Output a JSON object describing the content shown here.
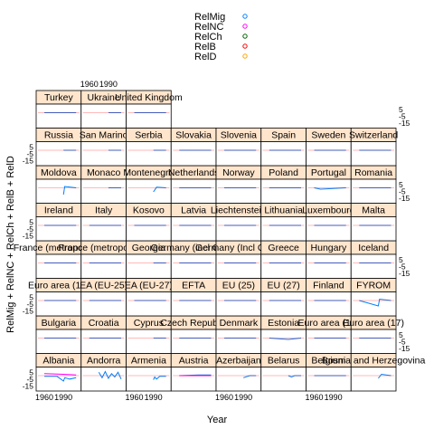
{
  "chart_data": {
    "type": "line",
    "title": "",
    "xlabel": "Year",
    "ylabel": "RelMig + RelNC + RelCh + RelB + RelD",
    "legend": {
      "placement": "top-center",
      "entries": [
        {
          "name": "RelMig",
          "color": "#0080ff"
        },
        {
          "name": "RelNC",
          "color": "#ff00ff"
        },
        {
          "name": "RelCh",
          "color": "#006400"
        },
        {
          "name": "RelB",
          "color": "#ff0000"
        },
        {
          "name": "RelD",
          "color": "#ffa500"
        }
      ]
    },
    "x_ticks": [
      "1960",
      "1990"
    ],
    "y_ticks": [
      "5",
      "-5",
      "-15"
    ],
    "xlim": [
      1950,
      2015
    ],
    "ylim": [
      -20,
      10
    ],
    "layout_grid": {
      "columns": 8,
      "rows": 8
    },
    "panels": [
      {
        "row": 0,
        "col": 0,
        "label": "Albania",
        "series": {
          "RelMig": [
            [
              1960,
              -1
            ],
            [
              1970,
              -1
            ],
            [
              1980,
              -1
            ],
            [
              1990,
              -8
            ],
            [
              1992,
              -3
            ],
            [
              2000,
              -5
            ],
            [
              2010,
              -3
            ]
          ],
          "RelNC": [
            [
              1960,
              3
            ],
            [
              1990,
              2
            ],
            [
              2010,
              1
            ]
          ]
        }
      },
      {
        "row": 0,
        "col": 1,
        "label": "Andorra",
        "series": {
          "RelMig": [
            [
              1975,
              5
            ],
            [
              1980,
              -3
            ],
            [
              1985,
              6
            ],
            [
              1990,
              -4
            ],
            [
              1995,
              3
            ],
            [
              2000,
              -2
            ],
            [
              2005,
              5
            ],
            [
              2010,
              -5
            ]
          ]
        }
      },
      {
        "row": 0,
        "col": 2,
        "label": "Armenia",
        "series": {
          "RelMig": [
            [
              1990,
              -6
            ],
            [
              1992,
              -2
            ],
            [
              1995,
              -5
            ],
            [
              2000,
              -1
            ],
            [
              2010,
              -1
            ]
          ]
        }
      },
      {
        "row": 0,
        "col": 3,
        "label": "Austria",
        "series": {
          "RelMig": [
            [
              1960,
              0
            ],
            [
              1990,
              1
            ],
            [
              2010,
              1
            ]
          ],
          "RelNC": [
            [
              1960,
              0
            ],
            [
              2010,
              0
            ]
          ]
        }
      },
      {
        "row": 0,
        "col": 4,
        "label": "Azerbaijan",
        "series": {
          "RelMig": [
            [
              1990,
              -3
            ],
            [
              2000,
              0
            ],
            [
              2010,
              0
            ]
          ]
        }
      },
      {
        "row": 0,
        "col": 5,
        "label": "Belarus",
        "series": {
          "RelMig": [
            [
              1990,
              0
            ],
            [
              1995,
              -2
            ],
            [
              2000,
              0
            ],
            [
              2010,
              0
            ]
          ]
        }
      },
      {
        "row": 0,
        "col": 6,
        "label": "Belgium",
        "series": {
          "RelMig": [
            [
              1960,
              0
            ],
            [
              2010,
              0
            ]
          ]
        }
      },
      {
        "row": 0,
        "col": 7,
        "label": "Bosnia and Herzegovina",
        "series": {
          "RelMig": [
            [
              1990,
              -4
            ],
            [
              1995,
              2
            ],
            [
              2010,
              0
            ]
          ]
        }
      },
      {
        "row": 1,
        "col": 0,
        "label": "Bulgaria",
        "series": {
          "RelMig": [
            [
              1960,
              0
            ],
            [
              2010,
              0
            ]
          ]
        }
      },
      {
        "row": 1,
        "col": 1,
        "label": "Croatia",
        "series": {
          "RelMig": [
            [
              1960,
              0
            ],
            [
              2010,
              0
            ]
          ]
        }
      },
      {
        "row": 1,
        "col": 2,
        "label": "Cyprus",
        "series": {
          "RelMig": [
            [
              1990,
              0
            ],
            [
              2010,
              0
            ]
          ]
        }
      },
      {
        "row": 1,
        "col": 3,
        "label": "Czech Republic",
        "series": {
          "RelMig": [
            [
              1960,
              0
            ],
            [
              2010,
              0
            ]
          ]
        }
      },
      {
        "row": 1,
        "col": 4,
        "label": "Denmark",
        "series": {
          "RelMig": [
            [
              1960,
              0
            ],
            [
              2010,
              0
            ]
          ]
        }
      },
      {
        "row": 1,
        "col": 5,
        "label": "Estonia",
        "series": {
          "RelMig": [
            [
              1960,
              0
            ],
            [
              1990,
              -2
            ],
            [
              2010,
              0
            ]
          ]
        }
      },
      {
        "row": 1,
        "col": 6,
        "label": "Euro area (16)",
        "series": {
          "RelMig": [
            [
              1960,
              0
            ],
            [
              2010,
              0
            ]
          ]
        }
      },
      {
        "row": 1,
        "col": 7,
        "label": "Euro area (17)",
        "series": {
          "RelMig": [
            [
              1960,
              0
            ],
            [
              2010,
              0
            ]
          ]
        }
      },
      {
        "row": 2,
        "col": 0,
        "label": "Euro area (15)",
        "series": {
          "RelMig": [
            [
              1960,
              0
            ],
            [
              2010,
              0
            ]
          ]
        }
      },
      {
        "row": 2,
        "col": 1,
        "label": "EA (EU-25)",
        "series": {
          "RelMig": [
            [
              1960,
              0
            ],
            [
              2010,
              0
            ]
          ]
        }
      },
      {
        "row": 2,
        "col": 2,
        "label": "EA (EU-27)",
        "series": {
          "RelMig": [
            [
              1960,
              0
            ],
            [
              2010,
              0
            ]
          ]
        }
      },
      {
        "row": 2,
        "col": 3,
        "label": "EFTA",
        "series": {
          "RelMig": [
            [
              1960,
              0
            ],
            [
              2010,
              0
            ]
          ]
        }
      },
      {
        "row": 2,
        "col": 4,
        "label": "EU (25)",
        "series": {
          "RelMig": [
            [
              1960,
              0
            ],
            [
              2010,
              0
            ]
          ]
        }
      },
      {
        "row": 2,
        "col": 5,
        "label": "EU (27)",
        "series": {
          "RelMig": [
            [
              1960,
              0
            ],
            [
              2010,
              0
            ]
          ]
        }
      },
      {
        "row": 2,
        "col": 6,
        "label": "Finland",
        "series": {
          "RelMig": [
            [
              1960,
              0
            ],
            [
              2010,
              0
            ]
          ]
        }
      },
      {
        "row": 2,
        "col": 7,
        "label": "FYROM",
        "series": {
          "RelMig": [
            [
              1960,
              0
            ],
            [
              1990,
              -8
            ],
            [
              1992,
              2
            ],
            [
              2010,
              0
            ]
          ]
        }
      },
      {
        "row": 3,
        "col": 0,
        "label": "France (metropolitan)",
        "series": {
          "RelMig": [
            [
              1960,
              0
            ],
            [
              2010,
              0
            ]
          ]
        }
      },
      {
        "row": 3,
        "col": 1,
        "label": "France (metropolitan)",
        "series": {
          "RelMig": [
            [
              1960,
              0
            ],
            [
              2010,
              0
            ]
          ]
        }
      },
      {
        "row": 3,
        "col": 2,
        "label": "Georgia",
        "series": {
          "RelMig": [
            [
              1990,
              0
            ],
            [
              2010,
              0
            ]
          ]
        }
      },
      {
        "row": 3,
        "col": 3,
        "label": "Germany (incl GDR)",
        "series": {
          "RelMig": [
            [
              1960,
              0
            ],
            [
              2010,
              0
            ]
          ]
        }
      },
      {
        "row": 3,
        "col": 4,
        "label": "Germany (Incl GDR)",
        "series": {
          "RelMig": [
            [
              1960,
              0
            ],
            [
              2010,
              0
            ]
          ]
        }
      },
      {
        "row": 3,
        "col": 5,
        "label": "Greece",
        "series": {
          "RelMig": [
            [
              1960,
              0
            ],
            [
              2010,
              0
            ]
          ]
        }
      },
      {
        "row": 3,
        "col": 6,
        "label": "Hungary",
        "series": {
          "RelMig": [
            [
              1960,
              0
            ],
            [
              2010,
              0
            ]
          ]
        }
      },
      {
        "row": 3,
        "col": 7,
        "label": "Iceland",
        "series": {
          "RelMig": [
            [
              1960,
              0
            ],
            [
              2010,
              0
            ]
          ]
        }
      },
      {
        "row": 4,
        "col": 0,
        "label": "Ireland",
        "series": {
          "RelMig": [
            [
              1960,
              0
            ],
            [
              2010,
              0
            ]
          ]
        }
      },
      {
        "row": 4,
        "col": 1,
        "label": "Italy",
        "series": {
          "RelMig": [
            [
              1960,
              0
            ],
            [
              2010,
              0
            ]
          ]
        }
      },
      {
        "row": 4,
        "col": 2,
        "label": "Kosovo",
        "series": {
          "RelMig": [
            [
              1960,
              0
            ],
            [
              2010,
              0
            ]
          ]
        }
      },
      {
        "row": 4,
        "col": 3,
        "label": "Latvia",
        "series": {
          "RelMig": [
            [
              1960,
              0
            ],
            [
              2010,
              0
            ]
          ]
        }
      },
      {
        "row": 4,
        "col": 4,
        "label": "Liechtenstein",
        "series": {
          "RelMig": [
            [
              1960,
              0
            ],
            [
              2010,
              0
            ]
          ]
        }
      },
      {
        "row": 4,
        "col": 5,
        "label": "Lithuania",
        "series": {
          "RelMig": [
            [
              1960,
              0
            ],
            [
              2010,
              0
            ]
          ]
        }
      },
      {
        "row": 4,
        "col": 6,
        "label": "Luxembourg",
        "series": {
          "RelMig": [
            [
              1960,
              0
            ],
            [
              2010,
              0
            ]
          ]
        }
      },
      {
        "row": 4,
        "col": 7,
        "label": "Malta",
        "series": {
          "RelMig": [
            [
              1960,
              0
            ],
            [
              2010,
              0
            ]
          ]
        }
      },
      {
        "row": 5,
        "col": 0,
        "label": "Moldova",
        "series": {
          "RelMig": [
            [
              1990,
              -10
            ],
            [
              1992,
              2
            ],
            [
              2010,
              0
            ]
          ]
        }
      },
      {
        "row": 5,
        "col": 1,
        "label": "Monaco",
        "series": {
          "RelMig": [
            [
              1990,
              0
            ],
            [
              2010,
              0
            ]
          ]
        }
      },
      {
        "row": 5,
        "col": 2,
        "label": "Montenegro",
        "series": {
          "RelMig": [
            [
              1990,
              -6
            ],
            [
              1995,
              1
            ],
            [
              2010,
              0
            ]
          ]
        }
      },
      {
        "row": 5,
        "col": 3,
        "label": "Netherlands",
        "series": {
          "RelMig": [
            [
              1960,
              0
            ],
            [
              2010,
              0
            ]
          ]
        }
      },
      {
        "row": 5,
        "col": 4,
        "label": "Norway",
        "series": {
          "RelMig": [
            [
              1960,
              0
            ],
            [
              2010,
              0
            ]
          ]
        }
      },
      {
        "row": 5,
        "col": 5,
        "label": "Poland",
        "series": {
          "RelMig": [
            [
              1960,
              0
            ],
            [
              2010,
              0
            ]
          ]
        }
      },
      {
        "row": 5,
        "col": 6,
        "label": "Portugal",
        "series": {
          "RelMig": [
            [
              1960,
              0
            ],
            [
              1970,
              -2
            ],
            [
              2010,
              0
            ]
          ]
        }
      },
      {
        "row": 5,
        "col": 7,
        "label": "Romania",
        "series": {
          "RelMig": [
            [
              1960,
              0
            ],
            [
              2010,
              0
            ]
          ]
        }
      },
      {
        "row": 6,
        "col": 0,
        "label": "Russia",
        "series": {
          "RelMig": [
            [
              1990,
              0
            ],
            [
              2010,
              0
            ]
          ]
        }
      },
      {
        "row": 6,
        "col": 1,
        "label": "San Marino",
        "series": {
          "RelMig": [
            [
              1990,
              0
            ],
            [
              2010,
              0
            ]
          ]
        }
      },
      {
        "row": 6,
        "col": 2,
        "label": "Serbia",
        "series": {
          "RelMig": [
            [
              1990,
              0
            ],
            [
              2010,
              0
            ]
          ]
        }
      },
      {
        "row": 6,
        "col": 3,
        "label": "Slovakia",
        "series": {
          "RelMig": [
            [
              1960,
              0
            ],
            [
              2010,
              0
            ]
          ]
        }
      },
      {
        "row": 6,
        "col": 4,
        "label": "Slovenia",
        "series": {
          "RelMig": [
            [
              1960,
              0
            ],
            [
              2010,
              0
            ]
          ]
        }
      },
      {
        "row": 6,
        "col": 5,
        "label": "Spain",
        "series": {
          "RelMig": [
            [
              1960,
              0
            ],
            [
              2010,
              0
            ]
          ]
        }
      },
      {
        "row": 6,
        "col": 6,
        "label": "Sweden",
        "series": {
          "RelMig": [
            [
              1960,
              0
            ],
            [
              2010,
              0
            ]
          ]
        }
      },
      {
        "row": 6,
        "col": 7,
        "label": "Switzerland",
        "series": {
          "RelMig": [
            [
              1960,
              0
            ],
            [
              2010,
              0
            ]
          ]
        }
      },
      {
        "row": 7,
        "col": 0,
        "label": "Turkey",
        "series": {
          "RelMig": [
            [
              1960,
              0
            ],
            [
              2010,
              0
            ]
          ]
        }
      },
      {
        "row": 7,
        "col": 1,
        "label": "Ukraine",
        "series": {
          "RelMig": [
            [
              1990,
              0
            ],
            [
              2010,
              0
            ]
          ]
        }
      },
      {
        "row": 7,
        "col": 2,
        "label": "United Kingdom",
        "series": {
          "RelMig": [
            [
              1960,
              0
            ],
            [
              2010,
              0
            ]
          ]
        }
      }
    ]
  }
}
